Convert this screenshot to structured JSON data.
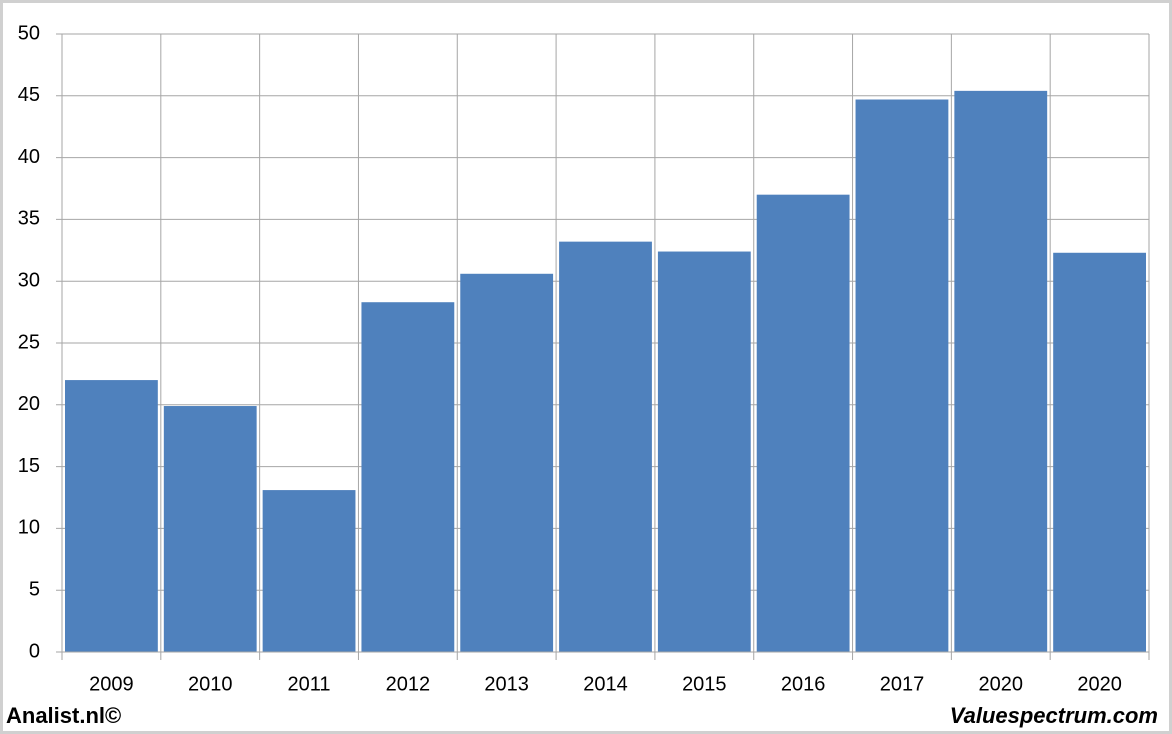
{
  "chart_data": {
    "type": "bar",
    "categories": [
      "2009",
      "2010",
      "2011",
      "2012",
      "2013",
      "2014",
      "2015",
      "2016",
      "2017",
      "2020",
      "2020"
    ],
    "values": [
      22,
      19.9,
      13.1,
      28.3,
      30.6,
      33.2,
      32.4,
      37,
      44.7,
      45.4,
      32.3
    ],
    "color": "#4f81bd",
    "ylim": [
      0,
      50
    ],
    "yticks": [
      0,
      5,
      10,
      15,
      20,
      25,
      30,
      35,
      40,
      45,
      50
    ],
    "grid": true,
    "annotations": [
      "Analist.nl©",
      "Valuespectrum.com"
    ]
  }
}
